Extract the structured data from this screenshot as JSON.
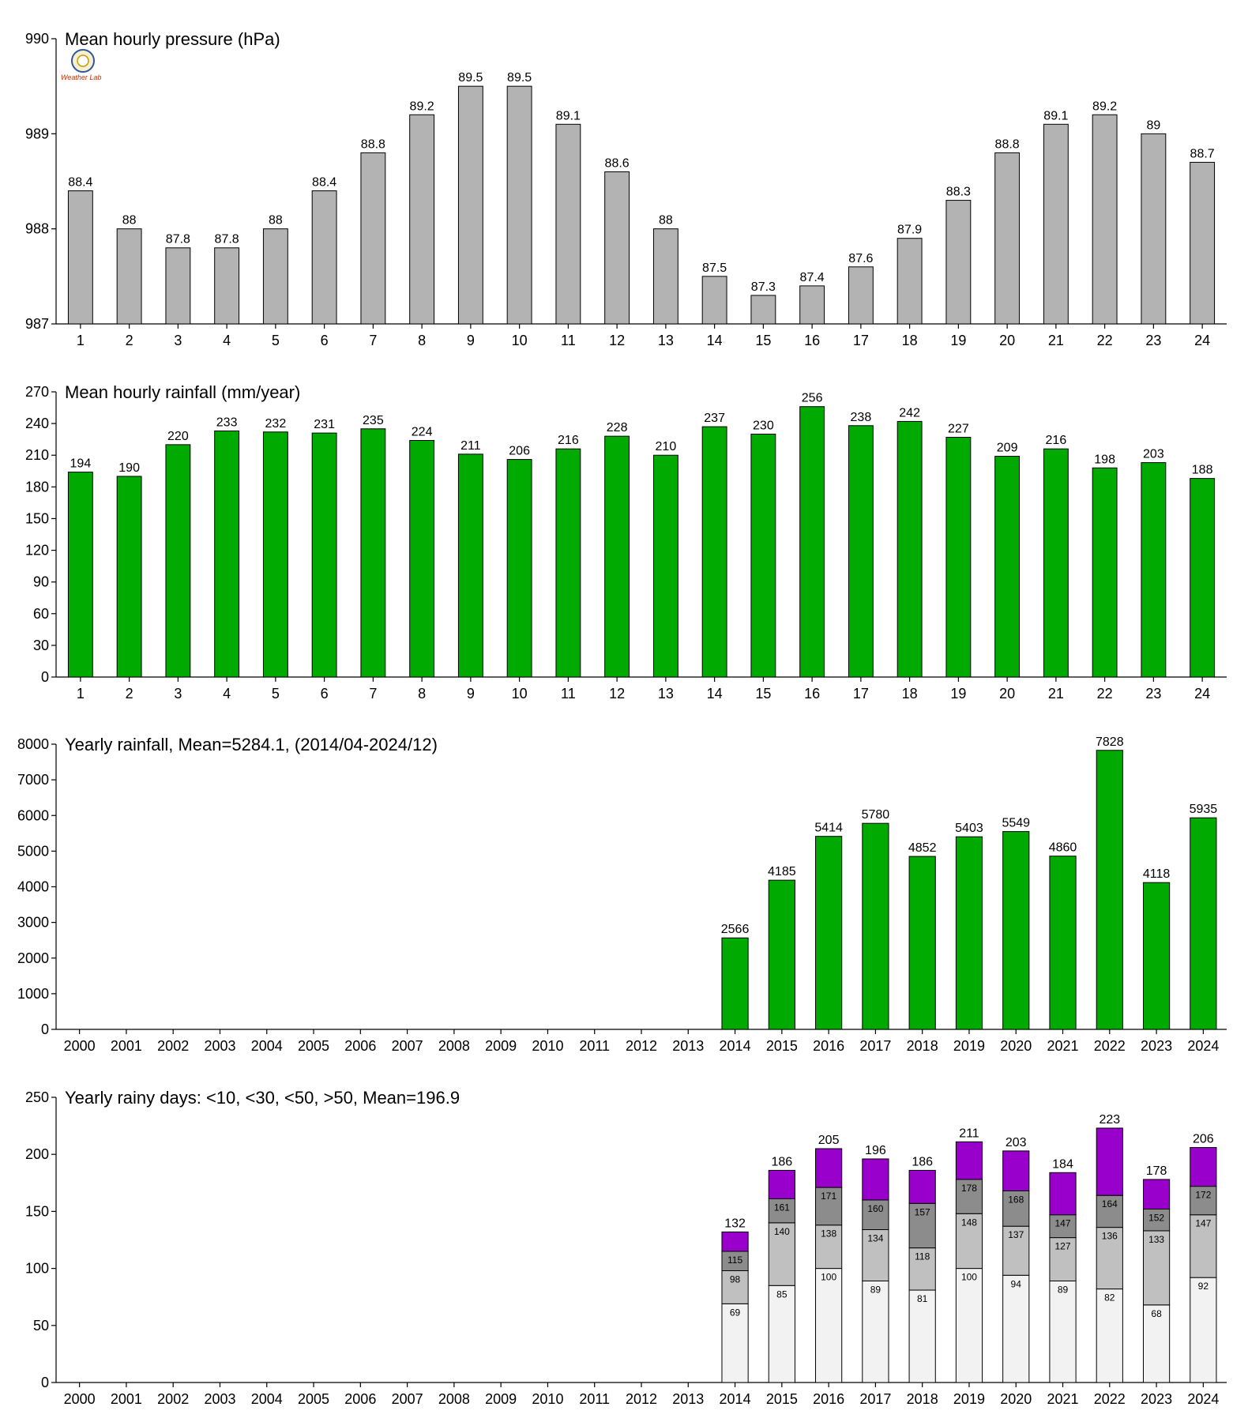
{
  "logo": {
    "text": "Weather Lab",
    "icon": "seal-icon"
  },
  "charts": [
    {
      "title": "Mean hourly pressure (hPa)",
      "type": "bar",
      "color": "#b3b3b3",
      "categories": [
        "1",
        "2",
        "3",
        "4",
        "5",
        "6",
        "7",
        "8",
        "9",
        "10",
        "11",
        "12",
        "13",
        "14",
        "15",
        "16",
        "17",
        "18",
        "19",
        "20",
        "21",
        "22",
        "23",
        "24"
      ],
      "values": [
        988.4,
        988.0,
        987.8,
        987.8,
        988.0,
        988.4,
        988.8,
        989.2,
        989.5,
        989.5,
        989.1,
        988.6,
        988.0,
        987.5,
        987.3,
        987.4,
        987.6,
        987.9,
        988.3,
        988.8,
        989.1,
        989.2,
        989.0,
        988.7
      ],
      "labels": [
        "88.4",
        "88",
        "87.8",
        "87.8",
        "88",
        "88.4",
        "88.8",
        "89.2",
        "89.5",
        "89.5",
        "89.1",
        "88.6",
        "88",
        "87.5",
        "87.3",
        "87.4",
        "87.6",
        "87.9",
        "88.3",
        "88.8",
        "89.1",
        "89.2",
        "89",
        "88.7"
      ],
      "ylim": [
        987,
        990
      ],
      "yticks": [
        987,
        988,
        989,
        990
      ]
    },
    {
      "title": "Mean hourly rainfall (mm/year)",
      "type": "bar",
      "color": "#00aa00",
      "categories": [
        "1",
        "2",
        "3",
        "4",
        "5",
        "6",
        "7",
        "8",
        "9",
        "10",
        "11",
        "12",
        "13",
        "14",
        "15",
        "16",
        "17",
        "18",
        "19",
        "20",
        "21",
        "22",
        "23",
        "24"
      ],
      "values": [
        194,
        190,
        220,
        233,
        232,
        231,
        235,
        224,
        211,
        206,
        216,
        228,
        210,
        237,
        230,
        256,
        238,
        242,
        227,
        209,
        216,
        198,
        203,
        188
      ],
      "labels": [
        "194",
        "190",
        "220",
        "233",
        "232",
        "231",
        "235",
        "224",
        "211",
        "206",
        "216",
        "228",
        "210",
        "237",
        "230",
        "256",
        "238",
        "242",
        "227",
        "209",
        "216",
        "198",
        "203",
        "188"
      ],
      "ylim": [
        0,
        270
      ],
      "yticks": [
        0,
        30,
        60,
        90,
        120,
        150,
        180,
        210,
        240,
        270
      ]
    },
    {
      "title": "Yearly rainfall, Mean=5284.1, (2014/04-2024/12)",
      "type": "bar",
      "color": "#00aa00",
      "categories": [
        "2000",
        "2001",
        "2002",
        "2003",
        "2004",
        "2005",
        "2006",
        "2007",
        "2008",
        "2009",
        "2010",
        "2011",
        "2012",
        "2013",
        "2014",
        "2015",
        "2016",
        "2017",
        "2018",
        "2019",
        "2020",
        "2021",
        "2022",
        "2023",
        "2024"
      ],
      "values": [
        null,
        null,
        null,
        null,
        null,
        null,
        null,
        null,
        null,
        null,
        null,
        null,
        null,
        null,
        2566,
        4185,
        5414,
        5780,
        4852,
        5403,
        5549,
        4860,
        7828,
        4118,
        5935
      ],
      "labels": [
        "",
        "",
        "",
        "",
        "",
        "",
        "",
        "",
        "",
        "",
        "",
        "",
        "",
        "",
        "2566",
        "4185",
        "5414",
        "5780",
        "4852",
        "5403",
        "5549",
        "4860",
        "7828",
        "4118",
        "5935"
      ],
      "ylim": [
        0,
        8000
      ],
      "yticks": [
        0,
        1000,
        2000,
        3000,
        4000,
        5000,
        6000,
        7000,
        8000
      ]
    },
    {
      "title": "Yearly rainy days: <10, <30, <50, >50, Mean=196.9",
      "type": "stacked-bar",
      "colors": [
        "#f2f2f2",
        "#c0c0c0",
        "#8c8c8c",
        "#9900cc"
      ],
      "categories": [
        "2000",
        "2001",
        "2002",
        "2003",
        "2004",
        "2005",
        "2006",
        "2007",
        "2008",
        "2009",
        "2010",
        "2011",
        "2012",
        "2013",
        "2014",
        "2015",
        "2016",
        "2017",
        "2018",
        "2019",
        "2020",
        "2021",
        "2022",
        "2023",
        "2024"
      ],
      "cumulative": [
        null,
        null,
        null,
        null,
        null,
        null,
        null,
        null,
        null,
        null,
        null,
        null,
        null,
        null,
        [
          69,
          98,
          115,
          132
        ],
        [
          85,
          140,
          161,
          186
        ],
        [
          100,
          138,
          171,
          205
        ],
        [
          89,
          134,
          160,
          196
        ],
        [
          81,
          118,
          157,
          186
        ],
        [
          100,
          148,
          178,
          211
        ],
        [
          94,
          137,
          168,
          203
        ],
        [
          89,
          127,
          147,
          184
        ],
        [
          82,
          136,
          164,
          223
        ],
        [
          68,
          133,
          152,
          178
        ],
        [
          92,
          147,
          172,
          206
        ]
      ],
      "ylim": [
        0,
        250
      ],
      "yticks": [
        0,
        50,
        100,
        150,
        200,
        250
      ]
    }
  ]
}
